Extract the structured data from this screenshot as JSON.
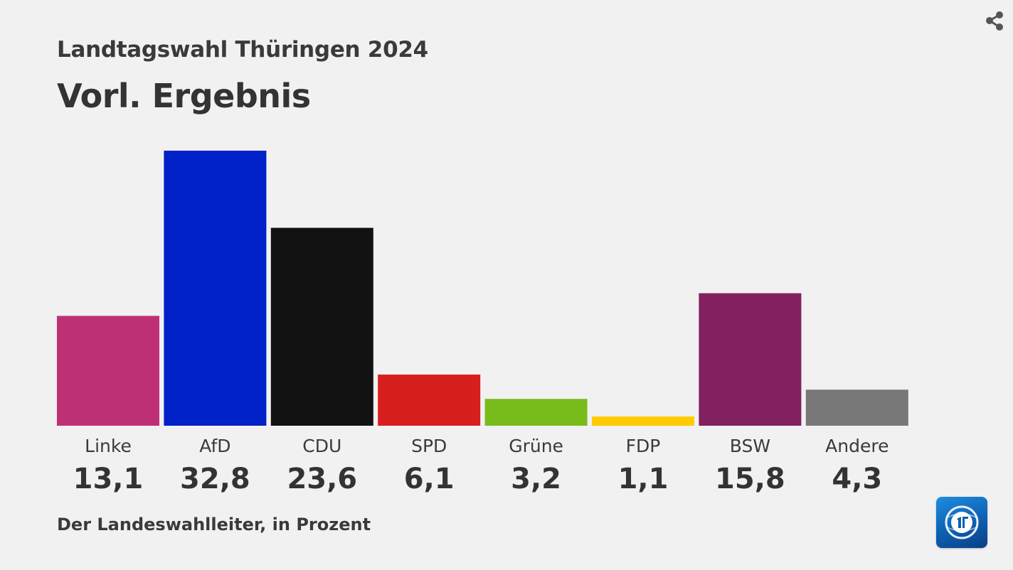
{
  "header": {
    "title": "Landtagswahl Thüringen 2024",
    "subtitle": "Vorl. Ergebnis"
  },
  "footer": {
    "source": "Der Landeswahlleiter, in Prozent"
  },
  "icons": {
    "share": "share-icon",
    "logo": "tagesschau-logo-icon"
  },
  "chart_data": {
    "type": "bar",
    "categories": [
      "Linke",
      "AfD",
      "CDU",
      "SPD",
      "Grüne",
      "FDP",
      "BSW",
      "Andere"
    ],
    "values": [
      13.1,
      32.8,
      23.6,
      6.1,
      3.2,
      1.1,
      15.8,
      4.3
    ],
    "value_labels": [
      "13,1",
      "32,8",
      "23,6",
      "6,1",
      "3,2",
      "1,1",
      "15,8",
      "4,3"
    ],
    "colors": [
      "#be3075",
      "#0021c8",
      "#121212",
      "#d71f1d",
      "#78bc1b",
      "#ffcc00",
      "#83205f",
      "#787878"
    ],
    "ylim": [
      0,
      32.8
    ],
    "grid": false,
    "legend": "none"
  }
}
